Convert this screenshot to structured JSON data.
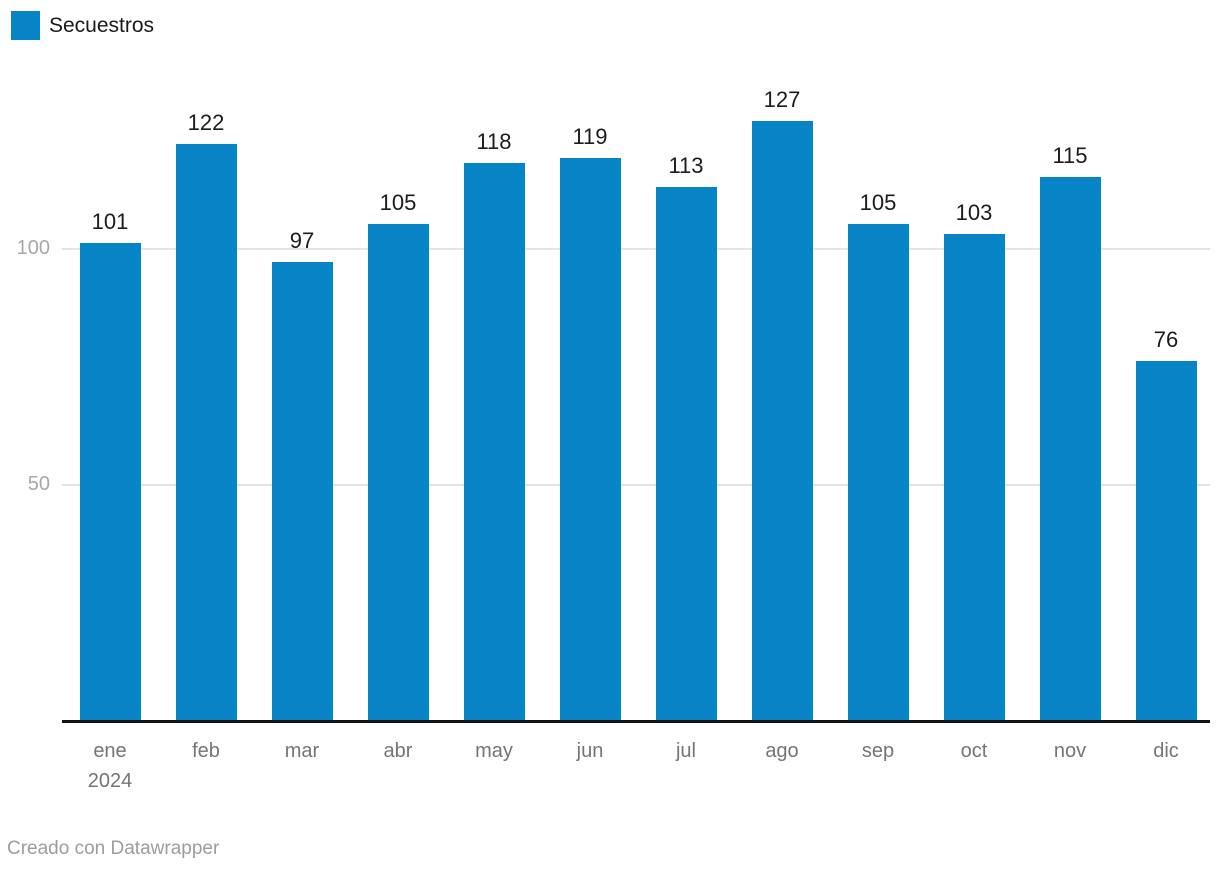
{
  "legend": {
    "label": "Secuestros"
  },
  "footer": {
    "text": "Creado con Datawrapper"
  },
  "colors": {
    "bar": "#0684c6",
    "axis": "#121212",
    "grid": "#e3e3e3",
    "value_label": "#1c1c1c",
    "y_tick_label": "#a8a8a8",
    "month_label": "#757575",
    "footer_text": "#9d9d9d"
  },
  "chart_data": {
    "type": "bar",
    "title": "",
    "legend_entries": [
      "Secuestros"
    ],
    "legend_position": "top-left",
    "categories": [
      "ene",
      "feb",
      "mar",
      "abr",
      "may",
      "jun",
      "jul",
      "ago",
      "sep",
      "oct",
      "nov",
      "dic"
    ],
    "first_tick_year": "2024",
    "series": [
      {
        "name": "Secuestros",
        "values": [
          101,
          122,
          97,
          105,
          118,
          119,
          113,
          127,
          105,
          103,
          115,
          76
        ]
      }
    ],
    "value_labels_shown": true,
    "y_ticks": [
      50,
      100
    ],
    "ylim": [
      0,
      131
    ],
    "grid": "horizontal",
    "xlabel": "",
    "ylabel": ""
  }
}
